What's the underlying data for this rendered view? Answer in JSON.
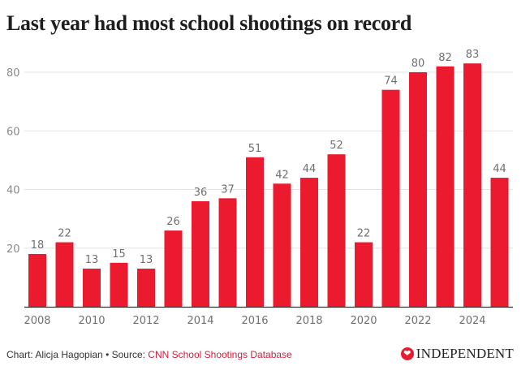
{
  "chart_data": {
    "type": "bar",
    "title": "Last year had most school shootings on record",
    "xlabel": "",
    "ylabel": "",
    "categories": [
      "2008",
      "2009",
      "2010",
      "2011",
      "2012",
      "2013",
      "2014",
      "2015",
      "2016",
      "2017",
      "2018",
      "2019",
      "2020",
      "2021",
      "2022",
      "2023",
      "2024",
      "2025"
    ],
    "values": [
      18,
      22,
      13,
      15,
      13,
      26,
      36,
      37,
      51,
      42,
      44,
      52,
      22,
      74,
      80,
      82,
      83,
      44
    ],
    "x_tick_labels": [
      "2008",
      "2010",
      "2012",
      "2014",
      "2016",
      "2018",
      "2020",
      "2022",
      "2024"
    ],
    "y_ticks": [
      20,
      40,
      60,
      80
    ],
    "ylim": [
      0,
      88
    ],
    "grid": true,
    "legend": "none",
    "bar_color": "#ec1a2e",
    "data_labels": true
  },
  "footer": {
    "credit": "Chart: Alicja Hagopian • Source: ",
    "source_link": "CNN School Shootings Database"
  },
  "logo": {
    "icon": "independent-eagle-icon",
    "text": "INDEPENDENT"
  }
}
